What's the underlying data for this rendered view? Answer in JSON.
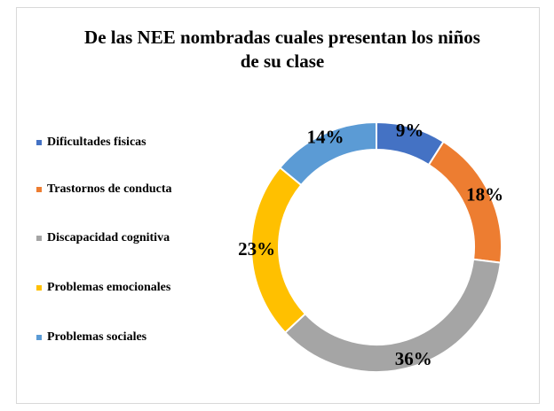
{
  "chart_data": {
    "type": "donut",
    "title": "De las NEE nombradas cuales presentan los niños de su clase",
    "categories": [
      "Dificultades fisicas",
      "Trastornos de conducta",
      "Discapacidad cognitiva",
      "Problemas emocionales",
      "Problemas sociales"
    ],
    "values": [
      9,
      18,
      36,
      23,
      14
    ],
    "value_labels": [
      "9%",
      "18%",
      "36%",
      "23%",
      "14%"
    ],
    "colors": [
      "#4472c4",
      "#ed7d31",
      "#a5a5a5",
      "#ffc000",
      "#5b9bd5"
    ],
    "legend": "left"
  }
}
